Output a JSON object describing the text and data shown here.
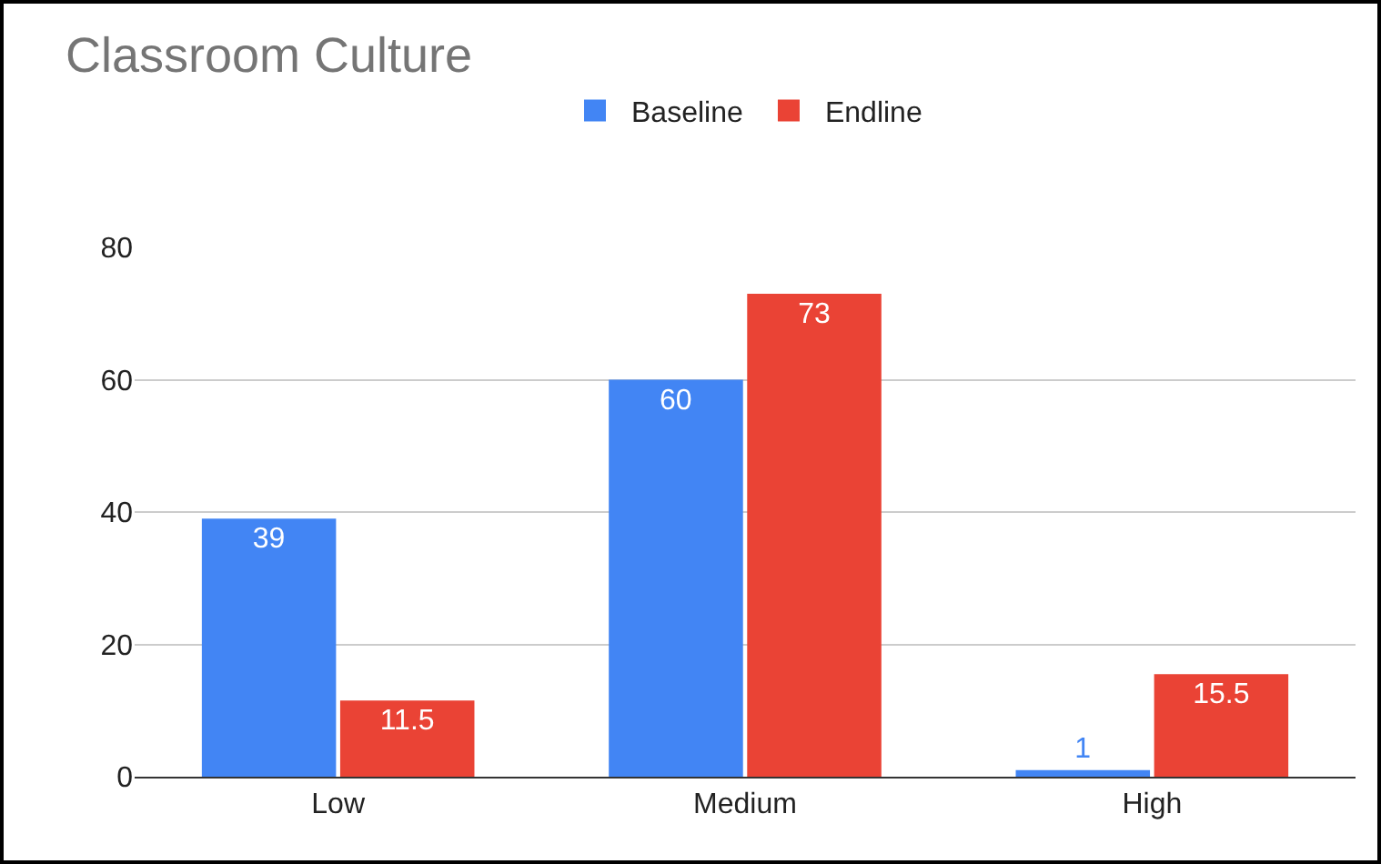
{
  "chart_data": {
    "type": "bar",
    "title": "Classroom Culture",
    "categories": [
      "Low",
      "Medium",
      "High"
    ],
    "series": [
      {
        "name": "Baseline",
        "color": "#4285f4",
        "values": [
          39,
          60,
          1
        ]
      },
      {
        "name": "Endline",
        "color": "#ea4335",
        "values": [
          11.5,
          73,
          15.5
        ]
      }
    ],
    "ylim": [
      0,
      80
    ],
    "yticks": [
      0,
      20,
      40,
      60,
      80
    ],
    "grid": "y",
    "legend": "top",
    "data_labels": true
  }
}
